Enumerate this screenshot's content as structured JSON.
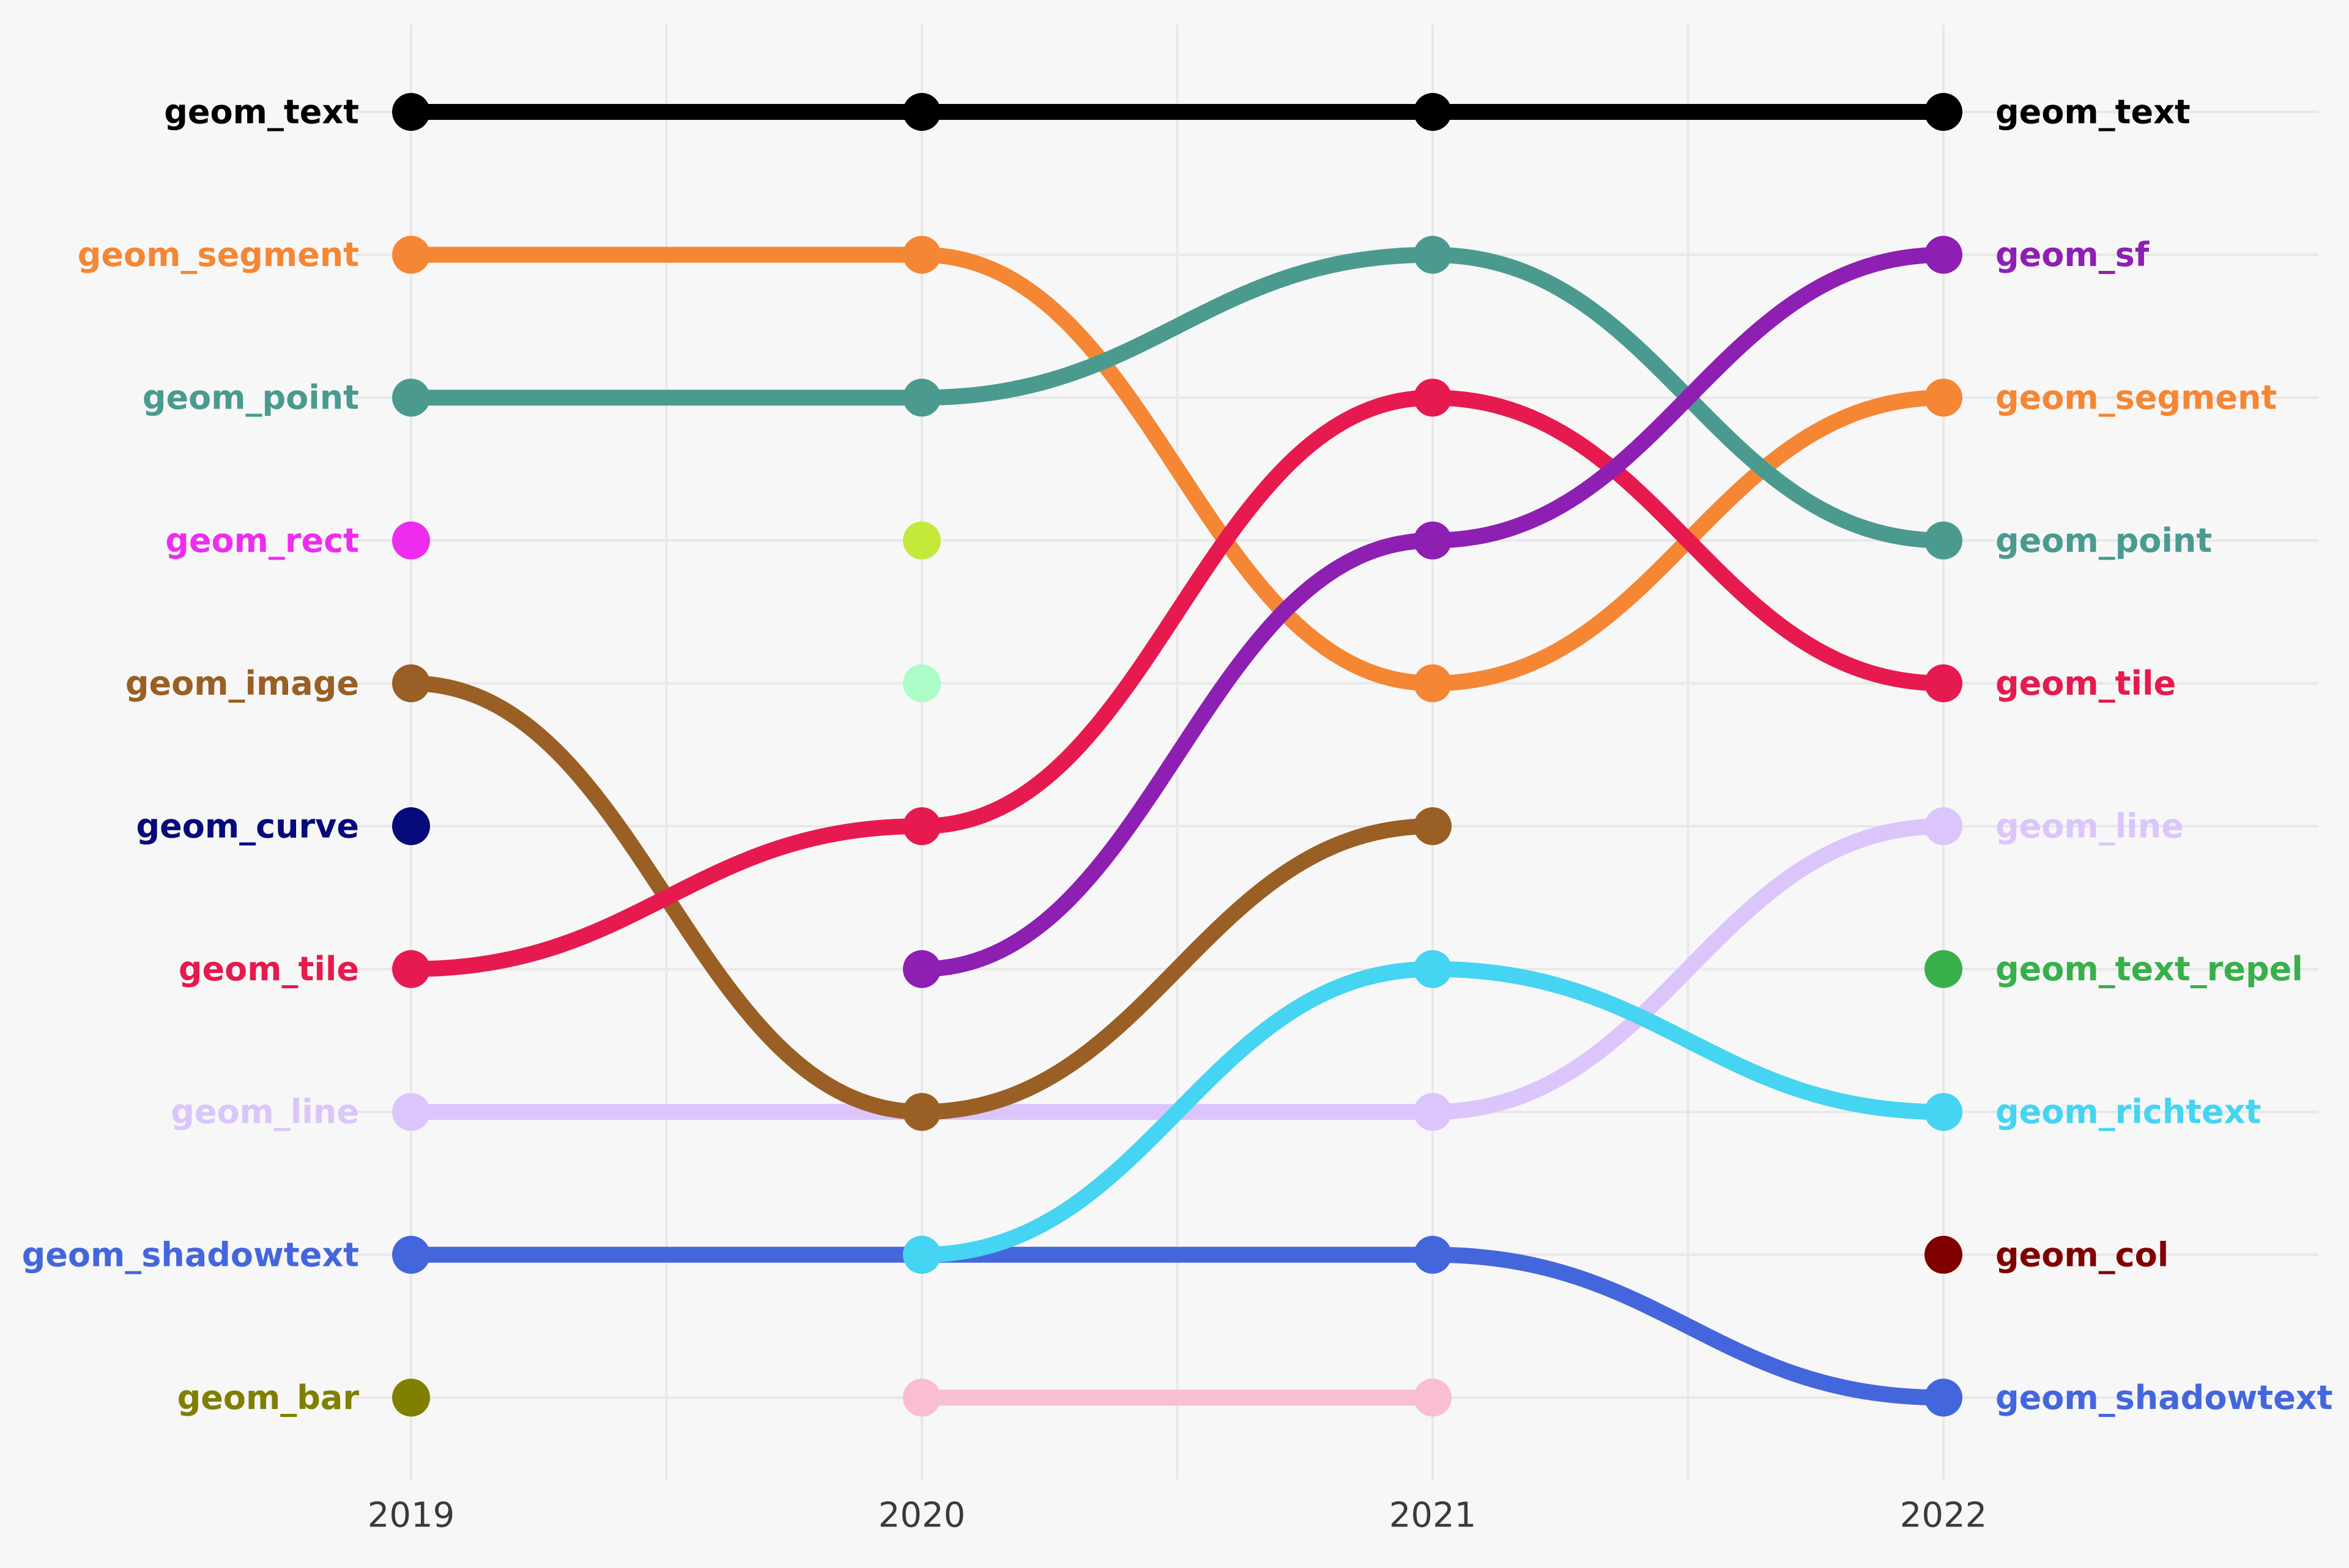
{
  "chart_data": {
    "type": "bump",
    "x": [
      "2019",
      "2020",
      "2021",
      "2022"
    ],
    "ranks_shown": 10,
    "left_labels": [
      {
        "rank": 1,
        "text": "geom_text",
        "color": "#000000"
      },
      {
        "rank": 2,
        "text": "geom_segment",
        "color": "#f58634"
      },
      {
        "rank": 3,
        "text": "geom_point",
        "color": "#4a9a90"
      },
      {
        "rank": 4,
        "text": "geom_rect",
        "color": "#ee2cf0"
      },
      {
        "rank": 5,
        "text": "geom_image",
        "color": "#9a5f24"
      },
      {
        "rank": 6,
        "text": "geom_curve",
        "color": "#060a7a"
      },
      {
        "rank": 7,
        "text": "geom_tile",
        "color": "#e61a4f"
      },
      {
        "rank": 8,
        "text": "geom_line",
        "color": "#dbc5fb"
      },
      {
        "rank": 9,
        "text": "geom_shadowtext",
        "color": "#4466dd"
      },
      {
        "rank": 10,
        "text": "geom_bar",
        "color": "#7f7f00"
      }
    ],
    "right_labels": [
      {
        "rank": 1,
        "text": "geom_text",
        "color": "#000000"
      },
      {
        "rank": 2,
        "text": "geom_sf",
        "color": "#8e1fb3"
      },
      {
        "rank": 3,
        "text": "geom_segment",
        "color": "#f58634"
      },
      {
        "rank": 4,
        "text": "geom_point",
        "color": "#4a9a90"
      },
      {
        "rank": 5,
        "text": "geom_tile",
        "color": "#e61a4f"
      },
      {
        "rank": 6,
        "text": "geom_line",
        "color": "#dbc5fb"
      },
      {
        "rank": 7,
        "text": "geom_text_repel",
        "color": "#38b04a"
      },
      {
        "rank": 8,
        "text": "geom_richtext",
        "color": "#45d4f1"
      },
      {
        "rank": 9,
        "text": "geom_col",
        "color": "#800000"
      },
      {
        "rank": 10,
        "text": "geom_shadowtext",
        "color": "#4466dd"
      }
    ],
    "series": [
      {
        "name": "geom_line",
        "color": "#dbc5fb",
        "ranks": [
          8,
          8,
          8,
          6
        ]
      },
      {
        "name": "geom_image",
        "color": "#9a5f24",
        "ranks": [
          5,
          8,
          6,
          null
        ]
      },
      {
        "name": "geom_shadowtext",
        "color": "#4466dd",
        "ranks": [
          9,
          9,
          9,
          10
        ]
      },
      {
        "name": "geom_richtext",
        "color": "#45d4f1",
        "ranks": [
          null,
          9,
          7,
          8
        ]
      },
      {
        "name": "geom_segment",
        "color": "#f58634",
        "ranks": [
          2,
          2,
          5,
          3
        ]
      },
      {
        "name": "geom_point",
        "color": "#4a9a90",
        "ranks": [
          3,
          3,
          2,
          4
        ]
      },
      {
        "name": "geom_tile",
        "color": "#e61a4f",
        "ranks": [
          7,
          6,
          3,
          5
        ]
      },
      {
        "name": "geom_sf",
        "color": "#8e1fb3",
        "ranks": [
          null,
          7,
          4,
          2
        ]
      },
      {
        "name": "geom_text",
        "color": "#000000",
        "ranks": [
          1,
          1,
          1,
          1
        ]
      },
      {
        "name": "geom_bar_2020_2021",
        "color": "#f9bdd4",
        "ranks": [
          null,
          10,
          10,
          null
        ]
      },
      {
        "name": "geom_rect",
        "color": "#ee2cf0",
        "ranks": [
          4,
          null,
          null,
          null
        ]
      },
      {
        "name": "geom_curve",
        "color": "#060a7a",
        "ranks": [
          6,
          null,
          null,
          null
        ]
      },
      {
        "name": "geom_bar",
        "color": "#7f7f00",
        "ranks": [
          10,
          null,
          null,
          null
        ]
      },
      {
        "name": "2020_rank4",
        "color": "#c4e93b",
        "ranks": [
          null,
          4,
          null,
          null
        ]
      },
      {
        "name": "2020_rank5",
        "color": "#acfcc8",
        "ranks": [
          null,
          5,
          null,
          null
        ]
      },
      {
        "name": "geom_text_repel",
        "color": "#38b04a",
        "ranks": [
          null,
          null,
          null,
          7
        ]
      },
      {
        "name": "geom_col",
        "color": "#800000",
        "ranks": [
          null,
          null,
          null,
          9
        ]
      }
    ],
    "title": "",
    "xlabel": "",
    "ylabel": "",
    "grid": true,
    "legend": "none"
  }
}
